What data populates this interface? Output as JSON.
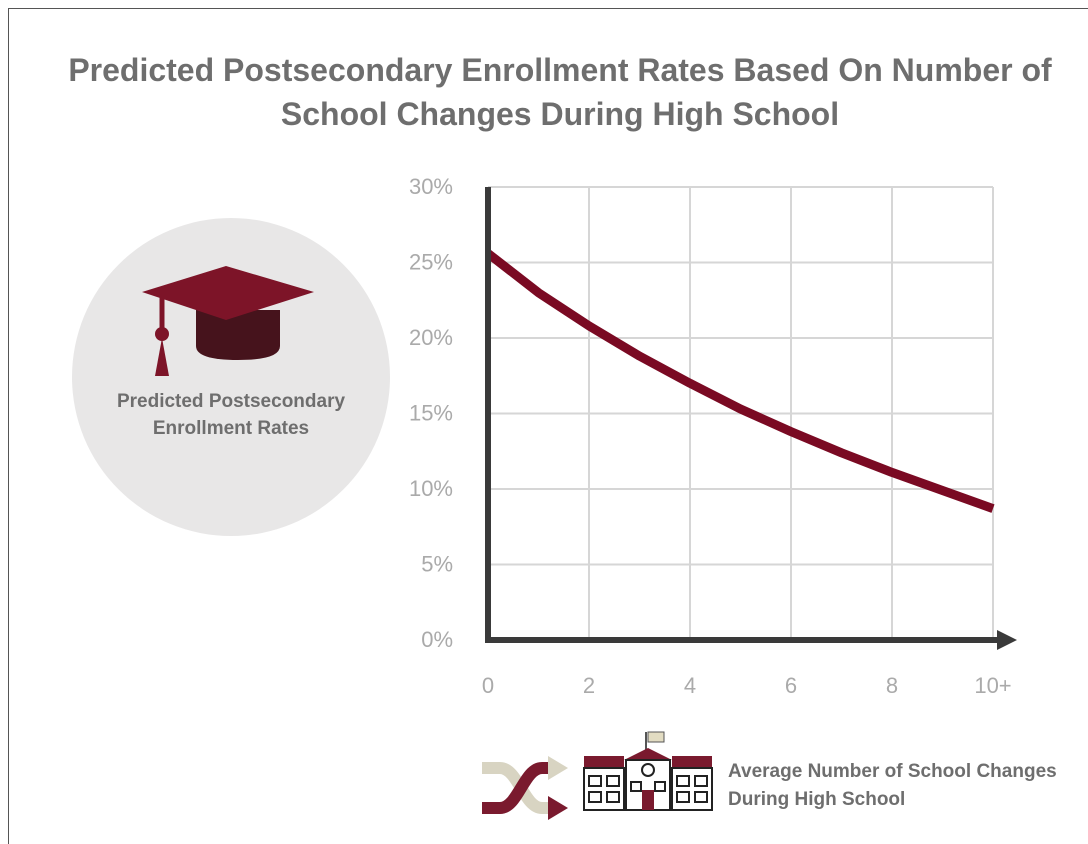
{
  "chart_data": {
    "type": "line",
    "title": "Predicted Postsecondary Enrollment Rates Based On Number of School Changes During High School",
    "ylabel": "Predicted Postsecondary Enrollment Rates",
    "xlabel": "Average Number of School Changes During High School",
    "x_tick_labels": [
      "0",
      "2",
      "4",
      "6",
      "8",
      "10+"
    ],
    "y_tick_labels": [
      "0%",
      "5%",
      "10%",
      "15%",
      "20%",
      "25%",
      "30%"
    ],
    "xlim": [
      0,
      10
    ],
    "ylim": [
      0,
      30
    ],
    "grid": true,
    "series": [
      {
        "x": [
          0,
          1,
          2,
          3,
          4,
          5,
          6,
          7,
          8,
          9,
          10
        ],
        "y": [
          25.6,
          23.0,
          20.8,
          18.8,
          17.0,
          15.3,
          13.8,
          12.4,
          11.1,
          9.9,
          8.7
        ]
      }
    ]
  },
  "colors": {
    "line": "#7a0a23",
    "cap": "#7d1428",
    "cap_band": "#46131c",
    "shuffle_dark": "#7a1a2e",
    "shuffle_light": "#d8d4c2",
    "school": "#7a1a2e",
    "flag": "#e2dcc2",
    "grid": "#d6d6d6",
    "axis": "#3a3a3a",
    "text": "#6e6e6e",
    "tick_text": "#aaaaaa",
    "circle": "#e8e7e7"
  },
  "icons": {
    "cap": "graduation-cap-icon",
    "shuffle": "shuffle-arrows-icon",
    "school": "school-building-icon"
  }
}
